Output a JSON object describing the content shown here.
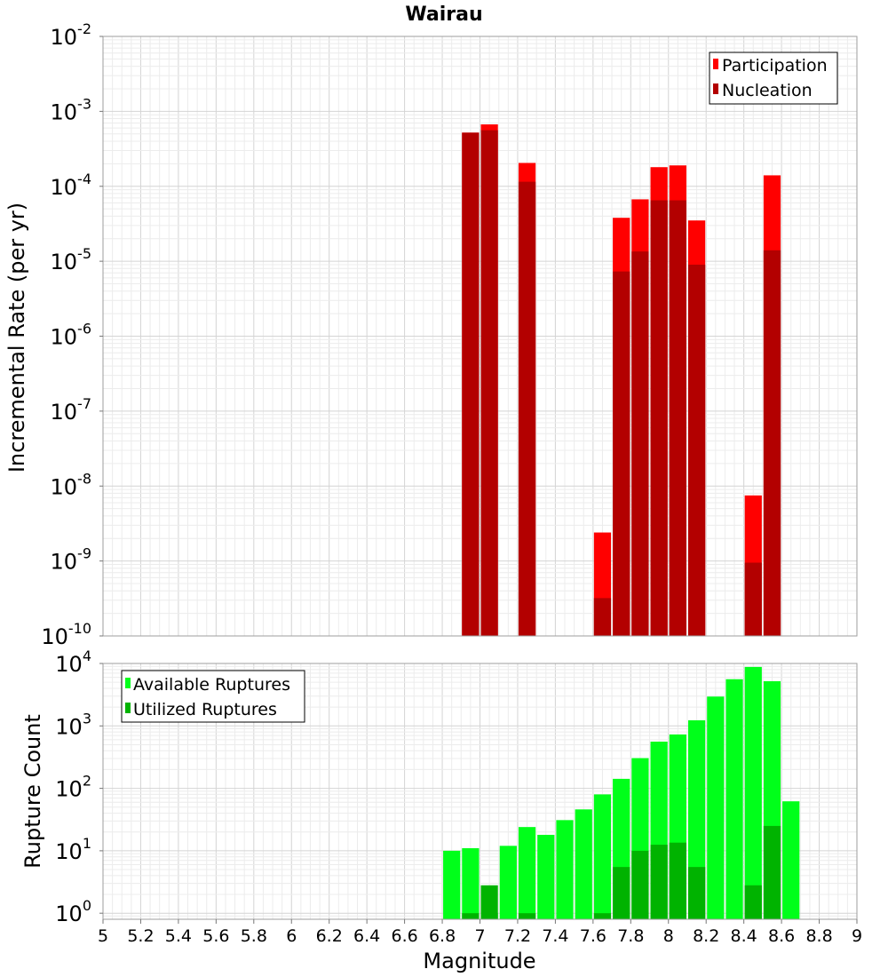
{
  "chart_data": [
    {
      "type": "bar",
      "title": "Wairau",
      "xlabel": "",
      "ylabel": "Incremental Rate (per yr)",
      "yscale": "log",
      "ylim": [
        1e-10,
        0.01
      ],
      "xlim": [
        5,
        9
      ],
      "bar_width": 0.1,
      "legend_position": "top-right",
      "grid": true,
      "y_ticks": [
        {
          "base": "10",
          "exp": "-2"
        },
        {
          "base": "10",
          "exp": "-3"
        },
        {
          "base": "10",
          "exp": "-4"
        },
        {
          "base": "10",
          "exp": "-5"
        },
        {
          "base": "10",
          "exp": "-6"
        },
        {
          "base": "10",
          "exp": "-7"
        },
        {
          "base": "10",
          "exp": "-8"
        },
        {
          "base": "10",
          "exp": "-9"
        },
        {
          "base": "10",
          "exp": "-10"
        }
      ],
      "series": [
        {
          "name": "Participation",
          "color": "#ff0000",
          "points": [
            {
              "x": 6.95,
              "y": 0.00052
            },
            {
              "x": 7.05,
              "y": 0.00067
            },
            {
              "x": 7.25,
              "y": 0.000205
            },
            {
              "x": 7.65,
              "y": 2.4e-09
            },
            {
              "x": 7.75,
              "y": 3.8e-05
            },
            {
              "x": 7.85,
              "y": 6.7e-05
            },
            {
              "x": 7.95,
              "y": 0.00018
            },
            {
              "x": 8.05,
              "y": 0.00019
            },
            {
              "x": 8.15,
              "y": 3.5e-05
            },
            {
              "x": 8.45,
              "y": 7.5e-09
            },
            {
              "x": 8.55,
              "y": 0.00014
            }
          ]
        },
        {
          "name": "Nucleation",
          "color": "#b30000",
          "points": [
            {
              "x": 6.95,
              "y": 0.00052
            },
            {
              "x": 7.05,
              "y": 0.00056
            },
            {
              "x": 7.25,
              "y": 0.000115
            },
            {
              "x": 7.65,
              "y": 3.2e-10
            },
            {
              "x": 7.75,
              "y": 7.3e-06
            },
            {
              "x": 7.85,
              "y": 1.35e-05
            },
            {
              "x": 7.95,
              "y": 6.5e-05
            },
            {
              "x": 8.05,
              "y": 6.5e-05
            },
            {
              "x": 8.15,
              "y": 9e-06
            },
            {
              "x": 8.45,
              "y": 9.5e-10
            },
            {
              "x": 8.55,
              "y": 1.4e-05
            }
          ]
        }
      ]
    },
    {
      "type": "bar",
      "title": "",
      "xlabel": "Magnitude",
      "ylabel": "Rupture Count",
      "yscale": "log",
      "ylim": [
        0.8,
        10000
      ],
      "xlim": [
        5,
        9
      ],
      "bar_width": 0.1,
      "legend_position": "top-left",
      "grid": true,
      "y_ticks": [
        {
          "base": "10",
          "exp": "4"
        },
        {
          "base": "10",
          "exp": "3"
        },
        {
          "base": "10",
          "exp": "2"
        },
        {
          "base": "10",
          "exp": "1"
        },
        {
          "base": "10",
          "exp": "0"
        }
      ],
      "x_ticks": [
        "5",
        "5.2",
        "5.4",
        "5.6",
        "5.8",
        "6",
        "6.2",
        "6.4",
        "6.6",
        "6.8",
        "7",
        "7.2",
        "7.4",
        "7.6",
        "7.8",
        "8",
        "8.2",
        "8.4",
        "8.6",
        "8.8",
        "9"
      ],
      "series": [
        {
          "name": "Available Ruptures",
          "color": "#00ff1a",
          "points": [
            {
              "x": 6.85,
              "y": 10
            },
            {
              "x": 6.95,
              "y": 11
            },
            {
              "x": 7.05,
              "y": 1
            },
            {
              "x": 7.15,
              "y": 12
            },
            {
              "x": 7.25,
              "y": 24
            },
            {
              "x": 7.35,
              "y": 18
            },
            {
              "x": 7.45,
              "y": 31
            },
            {
              "x": 7.55,
              "y": 46
            },
            {
              "x": 7.65,
              "y": 80
            },
            {
              "x": 7.75,
              "y": 142
            },
            {
              "x": 7.85,
              "y": 305
            },
            {
              "x": 7.95,
              "y": 560
            },
            {
              "x": 8.05,
              "y": 730
            },
            {
              "x": 8.15,
              "y": 1230
            },
            {
              "x": 8.25,
              "y": 2950
            },
            {
              "x": 8.35,
              "y": 5600
            },
            {
              "x": 8.45,
              "y": 8800
            },
            {
              "x": 8.55,
              "y": 5200
            },
            {
              "x": 8.65,
              "y": 62
            }
          ]
        },
        {
          "name": "Utilized Ruptures",
          "color": "#00b300",
          "points": [
            {
              "x": 6.95,
              "y": 1
            },
            {
              "x": 7.05,
              "y": 2.8
            },
            {
              "x": 7.25,
              "y": 1
            },
            {
              "x": 7.65,
              "y": 1
            },
            {
              "x": 7.75,
              "y": 5.5
            },
            {
              "x": 7.85,
              "y": 10
            },
            {
              "x": 7.95,
              "y": 12.5
            },
            {
              "x": 8.05,
              "y": 13.5
            },
            {
              "x": 8.15,
              "y": 5.5
            },
            {
              "x": 8.45,
              "y": 2.8
            },
            {
              "x": 8.55,
              "y": 25
            }
          ]
        }
      ]
    }
  ]
}
